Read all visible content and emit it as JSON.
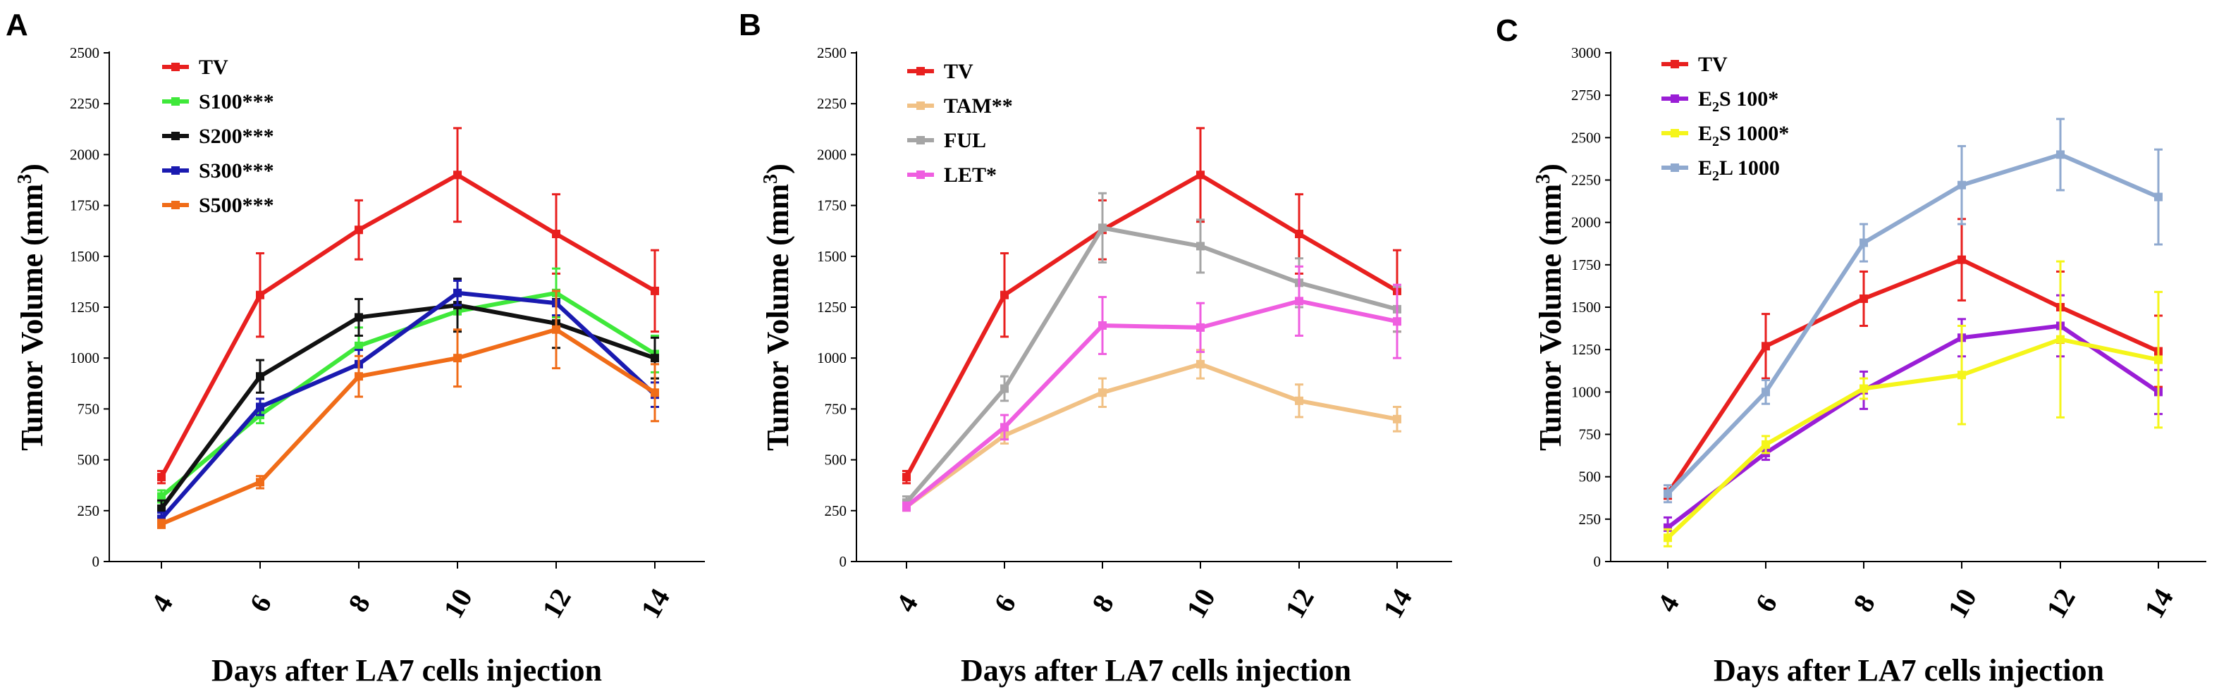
{
  "chart_data": [
    {
      "panel": "A",
      "type": "line",
      "title": "",
      "xlabel": "Days after LA7 cells injection",
      "ylabel_main": "Tumor Volume (mm",
      "ylabel_sup": "3",
      "ylabel_close": ")",
      "ylim": [
        0,
        2500
      ],
      "yticks": [
        0,
        250,
        500,
        750,
        1000,
        1250,
        1500,
        1750,
        2000,
        2250,
        2500
      ],
      "x": [
        4,
        6,
        8,
        10,
        12,
        14
      ],
      "xticks": [
        "4",
        "6",
        "8",
        "10",
        "12",
        "14"
      ],
      "legend_position": "top-left",
      "series": [
        {
          "name": "TV",
          "color": "#e8201f",
          "values": [
            415,
            1310,
            1630,
            1900,
            1610,
            1330
          ],
          "errors": [
            30,
            205,
            145,
            230,
            195,
            200
          ]
        },
        {
          "name": "S100***",
          "color": "#3fe83a",
          "values": [
            320,
            720,
            1060,
            1230,
            1320,
            1020
          ],
          "errors": [
            30,
            40,
            90,
            95,
            120,
            90
          ]
        },
        {
          "name": "S200***",
          "color": "#111111",
          "values": [
            260,
            910,
            1200,
            1260,
            1170,
            1000
          ],
          "errors": [
            40,
            80,
            90,
            130,
            120,
            100
          ]
        },
        {
          "name": "S300***",
          "color": "#1a1ab0",
          "values": [
            210,
            760,
            970,
            1320,
            1270,
            820
          ],
          "errors": [
            30,
            40,
            70,
            60,
            60,
            60
          ]
        },
        {
          "name": "S500***",
          "color": "#f06c18",
          "values": [
            185,
            390,
            910,
            1000,
            1140,
            830
          ],
          "errors": [
            20,
            30,
            100,
            140,
            190,
            140
          ]
        }
      ]
    },
    {
      "panel": "B",
      "type": "line",
      "title": "",
      "xlabel": "Days after LA7 cells injection",
      "ylabel_main": "Tumor Volume (mm",
      "ylabel_sup": "3",
      "ylabel_close": ")",
      "ylim": [
        0,
        2500
      ],
      "yticks": [
        0,
        250,
        500,
        750,
        1000,
        1250,
        1500,
        1750,
        2000,
        2250,
        2500
      ],
      "x": [
        4,
        6,
        8,
        10,
        12,
        14
      ],
      "xticks": [
        "4",
        "6",
        "8",
        "10",
        "12",
        "14"
      ],
      "legend_position": "top-left",
      "series": [
        {
          "name": "TV",
          "color": "#e8201f",
          "values": [
            415,
            1310,
            1630,
            1900,
            1610,
            1330
          ],
          "errors": [
            30,
            205,
            145,
            230,
            195,
            200
          ]
        },
        {
          "name": "TAM**",
          "color": "#f1c185",
          "values": [
            270,
            620,
            830,
            970,
            790,
            700
          ],
          "errors": [
            20,
            40,
            70,
            70,
            80,
            60
          ]
        },
        {
          "name": "FUL",
          "color": "#a5a5a5",
          "values": [
            290,
            850,
            1640,
            1550,
            1370,
            1240
          ],
          "errors": [
            30,
            60,
            170,
            130,
            120,
            110
          ]
        },
        {
          "name": "LET*",
          "color": "#ef5ee0",
          "values": [
            270,
            660,
            1160,
            1150,
            1280,
            1180
          ],
          "errors": [
            20,
            60,
            140,
            120,
            170,
            180
          ]
        }
      ]
    },
    {
      "panel": "C",
      "type": "line",
      "title": "",
      "xlabel": "Days after LA7 cells injection",
      "ylabel_main": "Tumor Volume (mm",
      "ylabel_sup": "3",
      "ylabel_close": ")",
      "ylim": [
        0,
        3000
      ],
      "yticks": [
        0,
        250,
        500,
        750,
        1000,
        1250,
        1500,
        1750,
        2000,
        2250,
        2500,
        2750,
        3000
      ],
      "x": [
        4,
        6,
        8,
        10,
        12,
        14
      ],
      "xticks": [
        "4",
        "6",
        "8",
        "10",
        "12",
        "14"
      ],
      "legend_position": "top-left",
      "series": [
        {
          "name": "TV",
          "base": "TV",
          "sub": "",
          "rest": "",
          "color": "#e8201f",
          "values": [
            400,
            1270,
            1550,
            1780,
            1500,
            1240
          ],
          "errors": [
            30,
            190,
            160,
            240,
            210,
            210
          ]
        },
        {
          "name": "E2S 100*",
          "base": "E",
          "sub": "2",
          "rest": "S 100*",
          "color": "#9a1ed6",
          "values": [
            200,
            640,
            1010,
            1320,
            1390,
            1000
          ],
          "errors": [
            60,
            40,
            110,
            110,
            180,
            130
          ]
        },
        {
          "name": "E2S 1000*",
          "base": "E",
          "sub": "2",
          "rest": "S 1000*",
          "color": "#f5f51a",
          "values": [
            140,
            690,
            1020,
            1100,
            1310,
            1190
          ],
          "errors": [
            50,
            50,
            60,
            290,
            460,
            400
          ]
        },
        {
          "name": "E2L 1000",
          "base": "E",
          "sub": "2",
          "rest": "L 1000",
          "color": "#8fa9cf",
          "values": [
            400,
            1000,
            1880,
            2220,
            2400,
            2150
          ],
          "errors": [
            50,
            70,
            110,
            230,
            210,
            280
          ]
        }
      ]
    }
  ]
}
